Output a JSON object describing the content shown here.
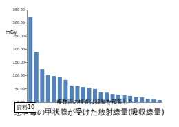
{
  "chart_data": {
    "type": "bar",
    "title": "患者毎の甲状腺が受けた放射線量(吸収線量)",
    "subtitle": "複数回の検査は線量を積算した",
    "y_label": "mGy",
    "annotations": [
      "資料10"
    ],
    "categories": [
      null,
      null,
      null,
      null,
      null,
      null,
      null,
      null,
      null,
      null,
      null,
      null,
      null,
      null,
      null,
      null,
      null,
      null,
      null,
      null,
      null,
      null,
      null
    ],
    "values": [
      322,
      190,
      125,
      104,
      99,
      94,
      84,
      63,
      60,
      57,
      55,
      50,
      37,
      36,
      31,
      29,
      26,
      24,
      20,
      18,
      13,
      10,
      8
    ],
    "color": "#4f81bd",
    "ylim": [
      0,
      350
    ],
    "yticks": [
      {
        "value": 0,
        "label": "0.00"
      },
      {
        "value": 50,
        "label": "50.00"
      },
      {
        "value": 100,
        "label": "100.00"
      },
      {
        "value": 150,
        "label": "150.00"
      },
      {
        "value": 200,
        "label": "200.00"
      },
      {
        "value": 250,
        "label": "250.00"
      },
      {
        "value": 300,
        "label": "300.00"
      },
      {
        "value": 350,
        "label": "350.00"
      }
    ],
    "grid": false,
    "tick_labels": "y"
  }
}
